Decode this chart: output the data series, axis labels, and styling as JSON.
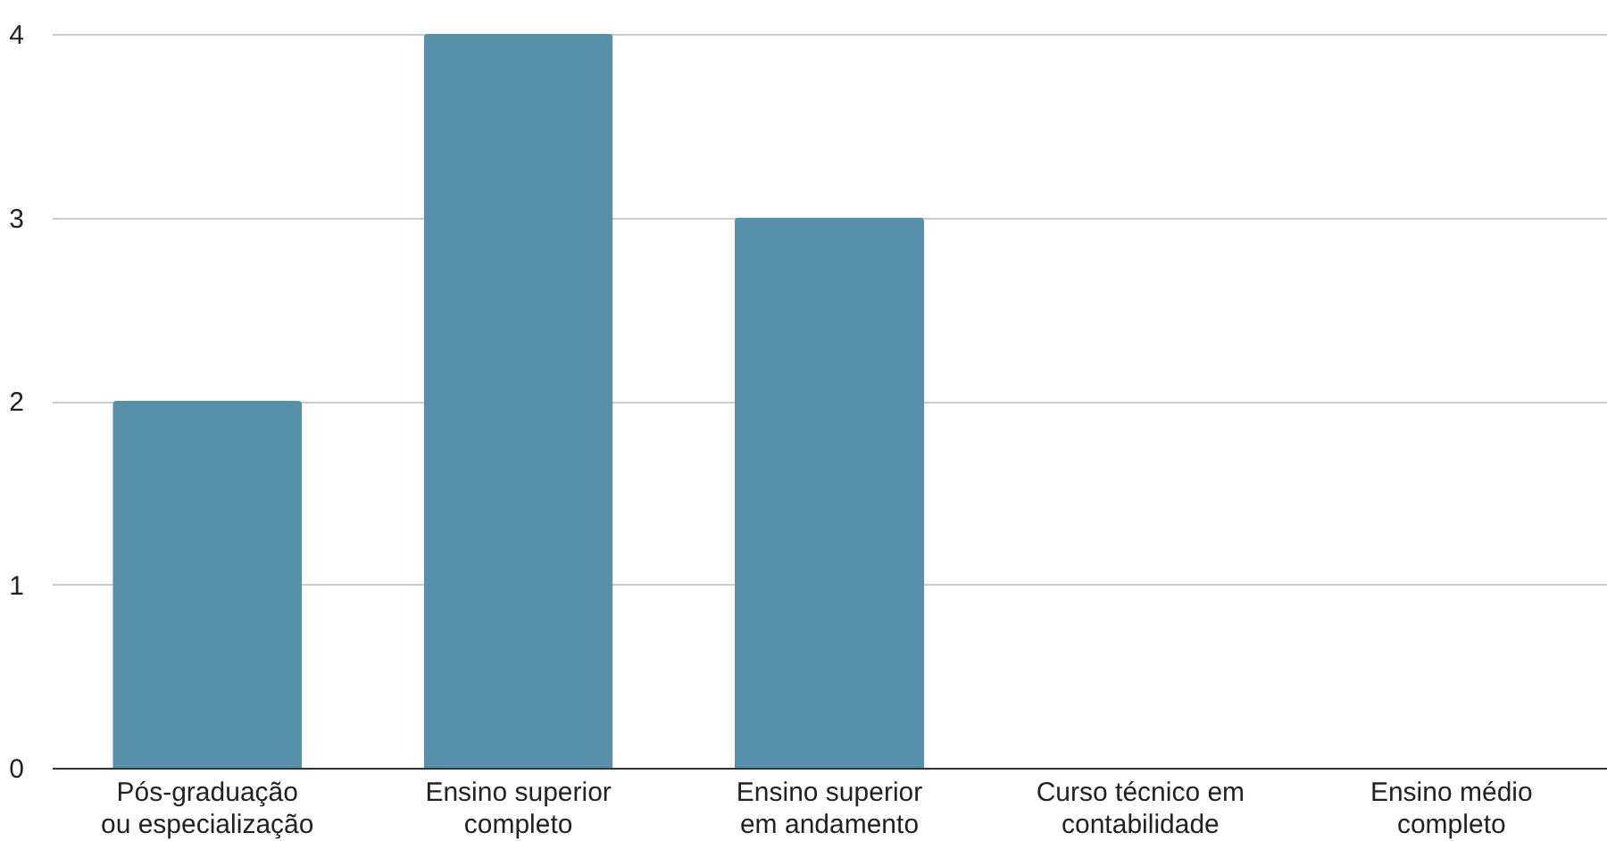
{
  "chart_data": {
    "type": "bar",
    "categories": [
      "Pós-graduação\nou especialização",
      "Ensino superior\ncompleto",
      "Ensino superior\nem andamento",
      "Curso técnico em\ncontabilidade",
      "Ensino médio\ncompleto"
    ],
    "values": [
      2,
      4,
      3,
      0,
      0
    ],
    "color": "#5790ab",
    "ylim": [
      0,
      4
    ],
    "yticks": [
      0,
      1,
      2,
      3,
      4
    ],
    "grid": "y"
  }
}
